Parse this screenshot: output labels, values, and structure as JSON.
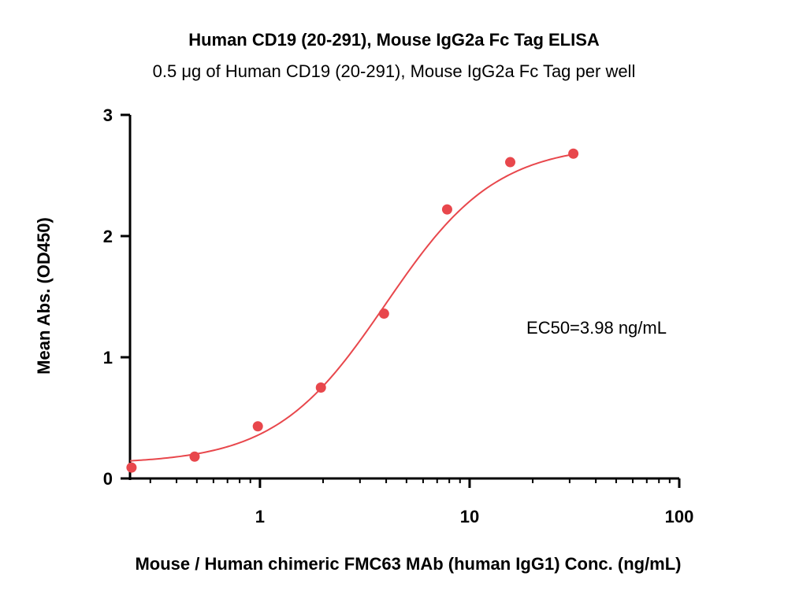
{
  "chart_data": {
    "type": "scatter",
    "title": "Human CD19 (20-291), Mouse IgG2a Fc Tag ELISA",
    "subtitle": "0.5 μg of Human CD19 (20-291), Mouse IgG2a Fc Tag per well",
    "xlabel": "Mouse / Human chimeric FMC63 MAb (human IgG1) Conc. (ng/mL)",
    "ylabel": "Mean Abs. (OD450)",
    "x_scale": "log",
    "xlim": [
      0.24,
      100
    ],
    "ylim": [
      0,
      3
    ],
    "x_ticks": [
      1,
      10,
      100
    ],
    "x_tick_labels": [
      "1",
      "10",
      "100"
    ],
    "y_ticks": [
      0,
      1,
      2,
      3
    ],
    "y_tick_labels": [
      "0",
      "1",
      "2",
      "3"
    ],
    "grid": false,
    "series": [
      {
        "x": [
          0.244,
          0.488,
          0.977,
          1.953,
          3.906,
          7.813,
          15.625,
          31.25
        ],
        "y": [
          0.09,
          0.18,
          0.43,
          0.75,
          1.36,
          2.22,
          2.61,
          2.68
        ],
        "color": "#e8474c",
        "fit": "4PL",
        "fit_params": {
          "bottom": 0.12,
          "top": 2.76,
          "ec50": 3.98,
          "hill": 1.65
        }
      }
    ],
    "annotations": [
      "EC50=3.98 ng/mL"
    ]
  }
}
